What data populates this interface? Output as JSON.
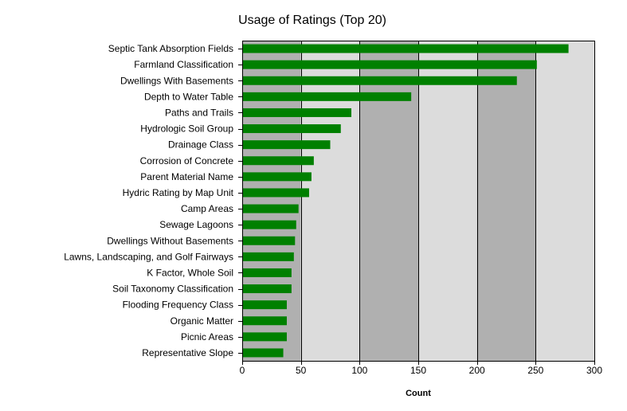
{
  "chart_data": {
    "type": "bar",
    "orientation": "horizontal",
    "title": "Usage of Ratings (Top 20)",
    "xlabel": "Count",
    "ylabel": "",
    "xlim": [
      0,
      300
    ],
    "xticks": [
      0,
      50,
      100,
      150,
      200,
      250,
      300
    ],
    "categories": [
      "Septic Tank Absorption Fields",
      "Farmland Classification",
      "Dwellings With Basements",
      "Depth to Water Table",
      "Paths and Trails",
      "Hydrologic Soil Group",
      "Drainage Class",
      "Corrosion of Concrete",
      "Parent Material Name",
      "Hydric Rating by Map Unit",
      "Camp Areas",
      "Sewage Lagoons",
      "Dwellings Without Basements",
      "Lawns, Landscaping, and Golf Fairways",
      "K Factor, Whole Soil",
      "Soil Taxonomy Classification",
      "Flooding Frequency Class",
      "Organic Matter",
      "Picnic Areas",
      "Representative Slope"
    ],
    "values": [
      278,
      251,
      234,
      144,
      93,
      84,
      75,
      61,
      59,
      57,
      48,
      46,
      45,
      44,
      42,
      42,
      38,
      38,
      38,
      35
    ],
    "colors": {
      "bar": "#008000",
      "band_light": "#dcdcdc",
      "band_dark": "#b0b0b0",
      "gridline": "#000000"
    },
    "grid": true,
    "legend": "none"
  }
}
